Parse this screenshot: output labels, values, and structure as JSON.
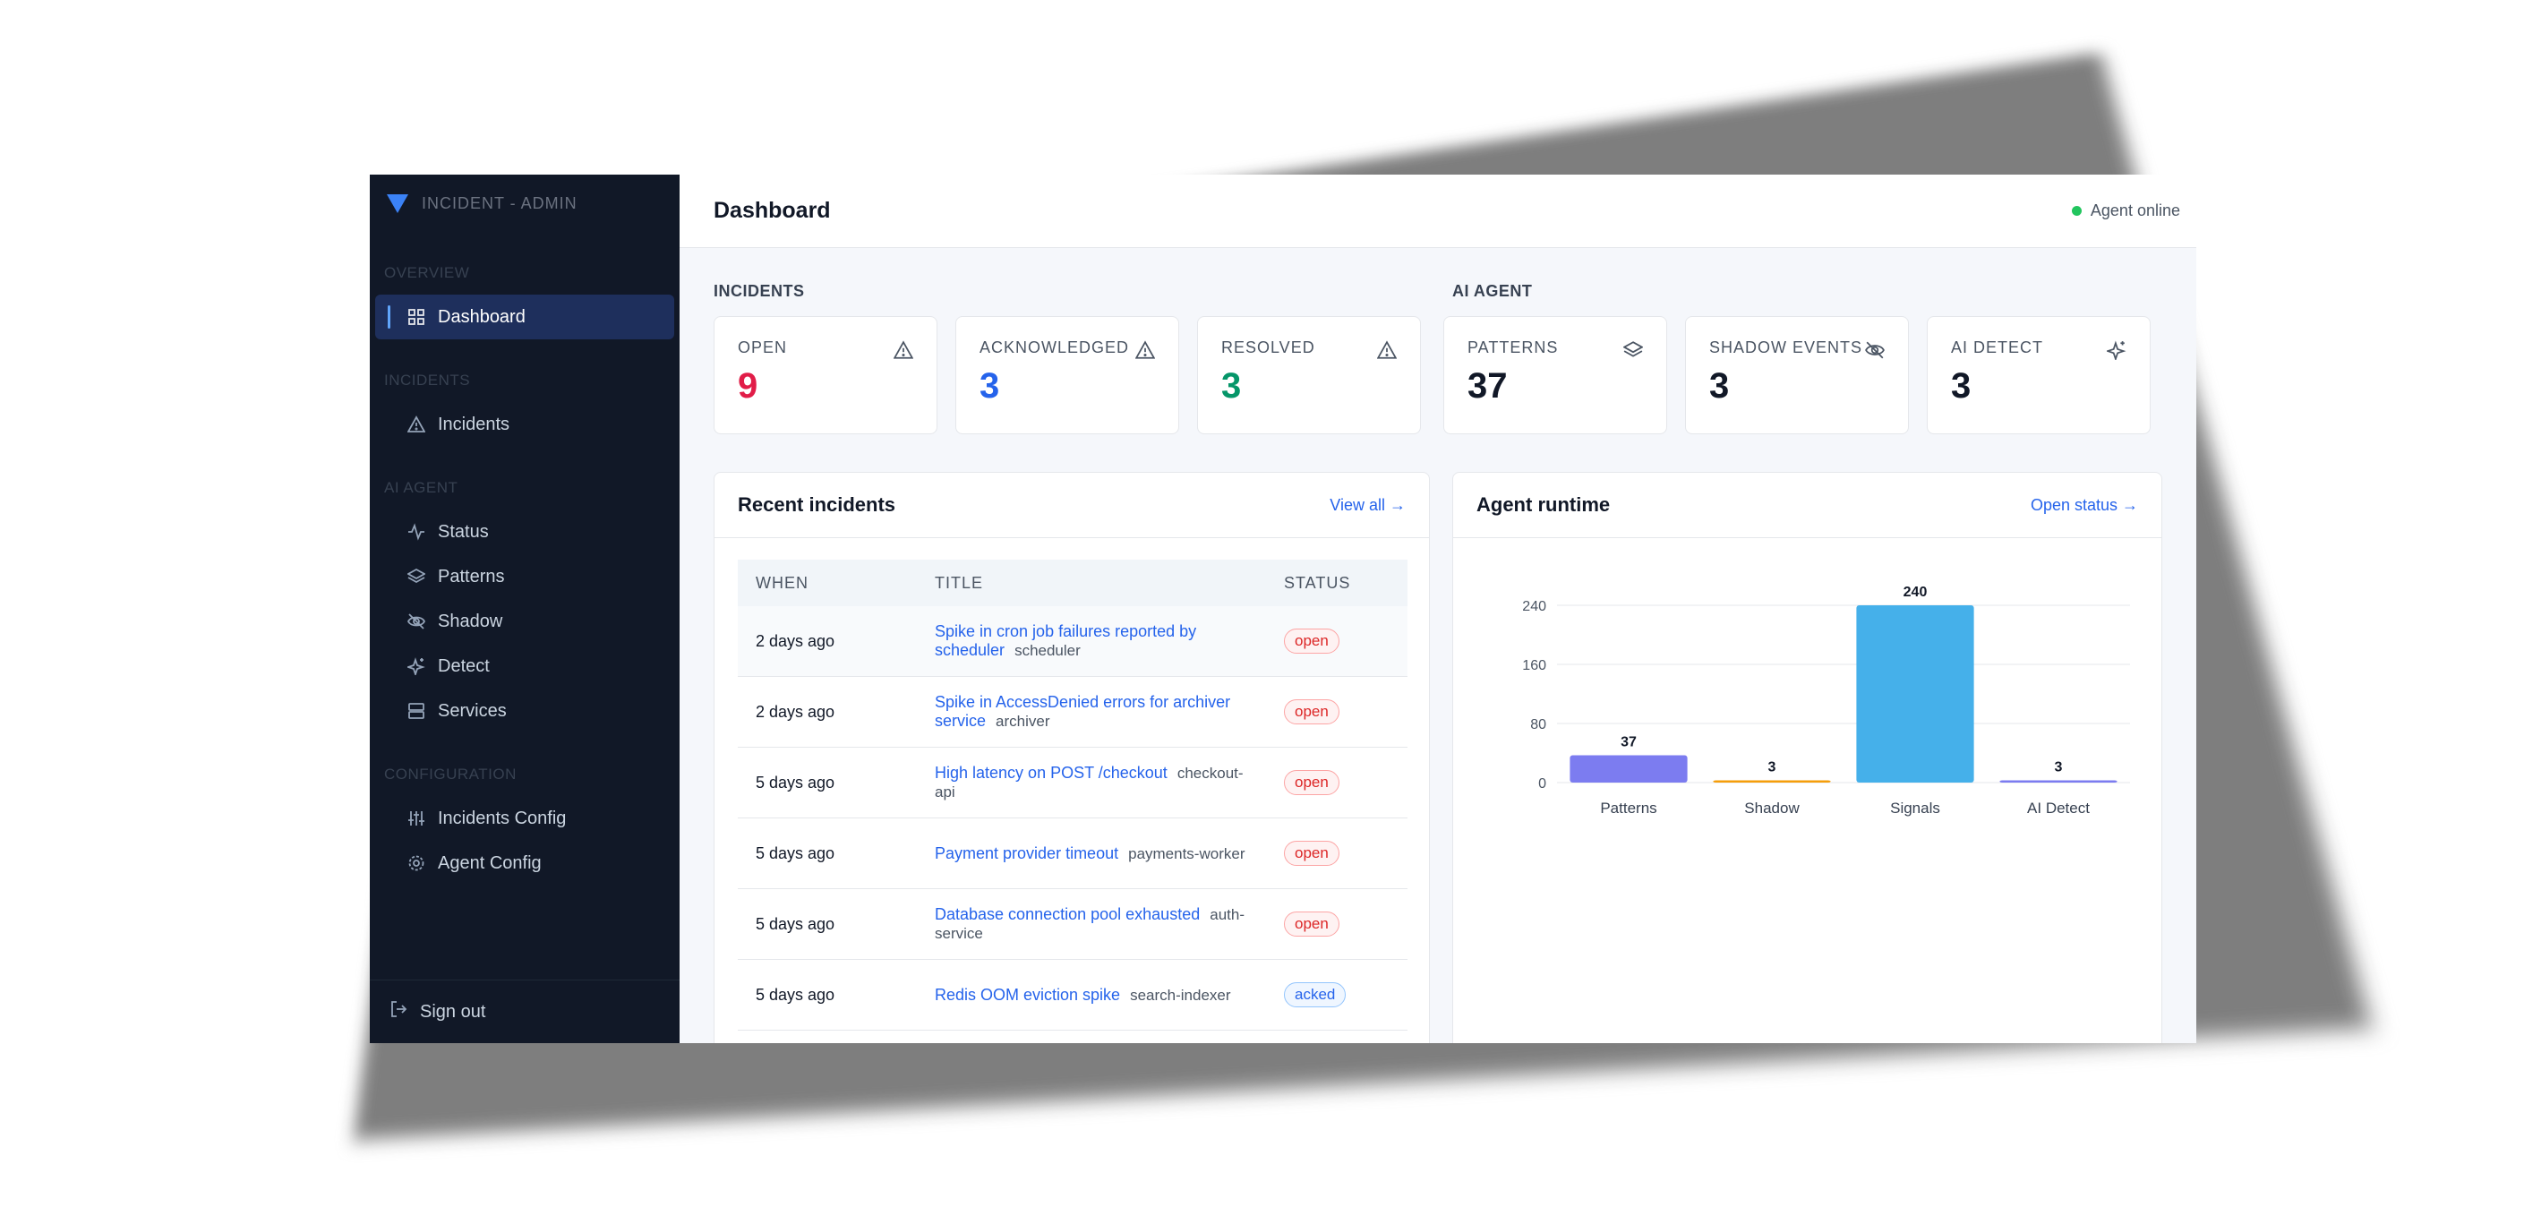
{
  "app": {
    "brand": "INCIDENT - ADMIN"
  },
  "sidebar": {
    "sections": [
      {
        "label": "OVERVIEW",
        "items": [
          {
            "label": "Dashboard",
            "icon": "grid-icon",
            "active": true
          }
        ]
      },
      {
        "label": "INCIDENTS",
        "items": [
          {
            "label": "Incidents",
            "icon": "alert-triangle-icon"
          }
        ]
      },
      {
        "label": "AI AGENT",
        "items": [
          {
            "label": "Status",
            "icon": "activity-icon"
          },
          {
            "label": "Patterns",
            "icon": "layers-icon"
          },
          {
            "label": "Shadow",
            "icon": "eye-off-icon"
          },
          {
            "label": "Detect",
            "icon": "sparkles-icon"
          },
          {
            "label": "Services",
            "icon": "server-icon"
          }
        ]
      },
      {
        "label": "CONFIGURATION",
        "items": [
          {
            "label": "Incidents Config",
            "icon": "sliders-icon"
          },
          {
            "label": "Agent Config",
            "icon": "gear-icon"
          }
        ]
      }
    ],
    "signout": "Sign out"
  },
  "header": {
    "title": "Dashboard",
    "agent_status": "Agent online"
  },
  "groups": {
    "incidents": "INCIDENTS",
    "agent": "AI AGENT"
  },
  "cards": [
    {
      "label": "OPEN",
      "value": "9",
      "color": "#e11d48",
      "icon": "alert-triangle-icon"
    },
    {
      "label": "ACKNOWLEDGED",
      "value": "3",
      "color": "#2563eb",
      "icon": "alert-triangle-icon"
    },
    {
      "label": "RESOLVED",
      "value": "3",
      "color": "#059669",
      "icon": "alert-triangle-icon"
    },
    {
      "label": "PATTERNS",
      "value": "37",
      "color": "#111827",
      "icon": "layers-icon"
    },
    {
      "label": "SHADOW EVENTS",
      "value": "3",
      "color": "#111827",
      "icon": "eye-off-icon"
    },
    {
      "label": "AI DETECT",
      "value": "3",
      "color": "#111827",
      "icon": "sparkles-icon"
    }
  ],
  "recent": {
    "title": "Recent incidents",
    "link": "View all →",
    "columns": [
      "WHEN",
      "TITLE",
      "STATUS"
    ],
    "rows": [
      {
        "when": "2 days ago",
        "title": "Spike in cron job failures reported by scheduler",
        "service": "scheduler",
        "status": "open"
      },
      {
        "when": "2 days ago",
        "title": "Spike in AccessDenied errors for archiver service",
        "service": "archiver",
        "status": "open"
      },
      {
        "when": "5 days ago",
        "title": "High latency on POST /checkout",
        "service": "checkout-api",
        "status": "open"
      },
      {
        "when": "5 days ago",
        "title": "Payment provider timeout",
        "service": "payments-worker",
        "status": "open"
      },
      {
        "when": "5 days ago",
        "title": "Database connection pool exhausted",
        "service": "auth-service",
        "status": "open"
      },
      {
        "when": "5 days ago",
        "title": "Redis OOM eviction spike",
        "service": "search-indexer",
        "status": "acked"
      }
    ]
  },
  "runtime": {
    "title": "Agent runtime",
    "link": "Open status →"
  },
  "chart_data": {
    "type": "bar",
    "categories": [
      "Patterns",
      "Shadow",
      "Signals",
      "AI Detect"
    ],
    "values": [
      37,
      3,
      240,
      3
    ],
    "colors": [
      "#7c7cf0",
      "#f59e0b",
      "#45b0ea",
      "#7c7cf0"
    ],
    "yticks": [
      0,
      80,
      160,
      240
    ],
    "ylim": [
      0,
      240
    ],
    "grid": true
  }
}
